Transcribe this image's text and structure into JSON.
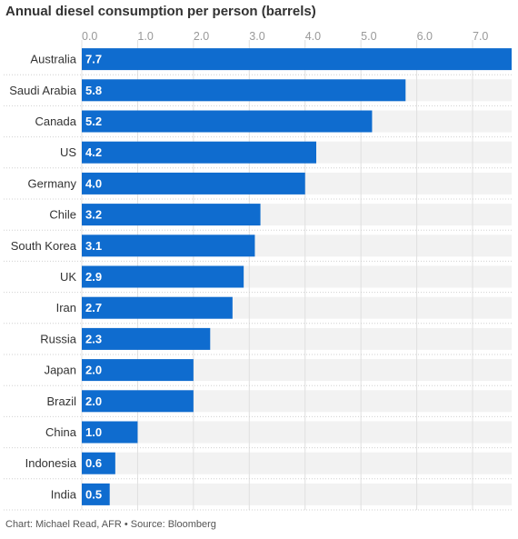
{
  "title": "Annual diesel consumption per person (barrels)",
  "footer": "Chart: Michael Read, AFR • Source: Bloomberg",
  "colors": {
    "bar": "#0f6ccf",
    "track": "#f2f2f2",
    "grid": "#e0e0e0"
  },
  "chart_data": {
    "type": "bar",
    "orientation": "horizontal",
    "title": "Annual diesel consumption per person (barrels)",
    "xlim": [
      0,
      7.7
    ],
    "ticks": [
      0,
      1,
      2,
      3,
      4,
      5,
      6,
      7
    ],
    "tick_labels": [
      "0.0",
      "1.0",
      "2.0",
      "3.0",
      "4.0",
      "5.0",
      "6.0",
      "7.0"
    ],
    "grid": true,
    "categories": [
      "Australia",
      "Saudi Arabia",
      "Canada",
      "US",
      "Germany",
      "Chile",
      "South Korea",
      "UK",
      "Iran",
      "Russia",
      "Japan",
      "Brazil",
      "China",
      "Indonesia",
      "India"
    ],
    "values": [
      7.7,
      5.8,
      5.2,
      4.2,
      4.0,
      3.2,
      3.1,
      2.9,
      2.7,
      2.3,
      2.0,
      2.0,
      1.0,
      0.6,
      0.5
    ],
    "value_labels": [
      "7.7",
      "5.8",
      "5.2",
      "4.2",
      "4.0",
      "3.2",
      "3.1",
      "2.9",
      "2.7",
      "2.3",
      "2.0",
      "2.0",
      "1.0",
      "0.6",
      "0.5"
    ]
  }
}
